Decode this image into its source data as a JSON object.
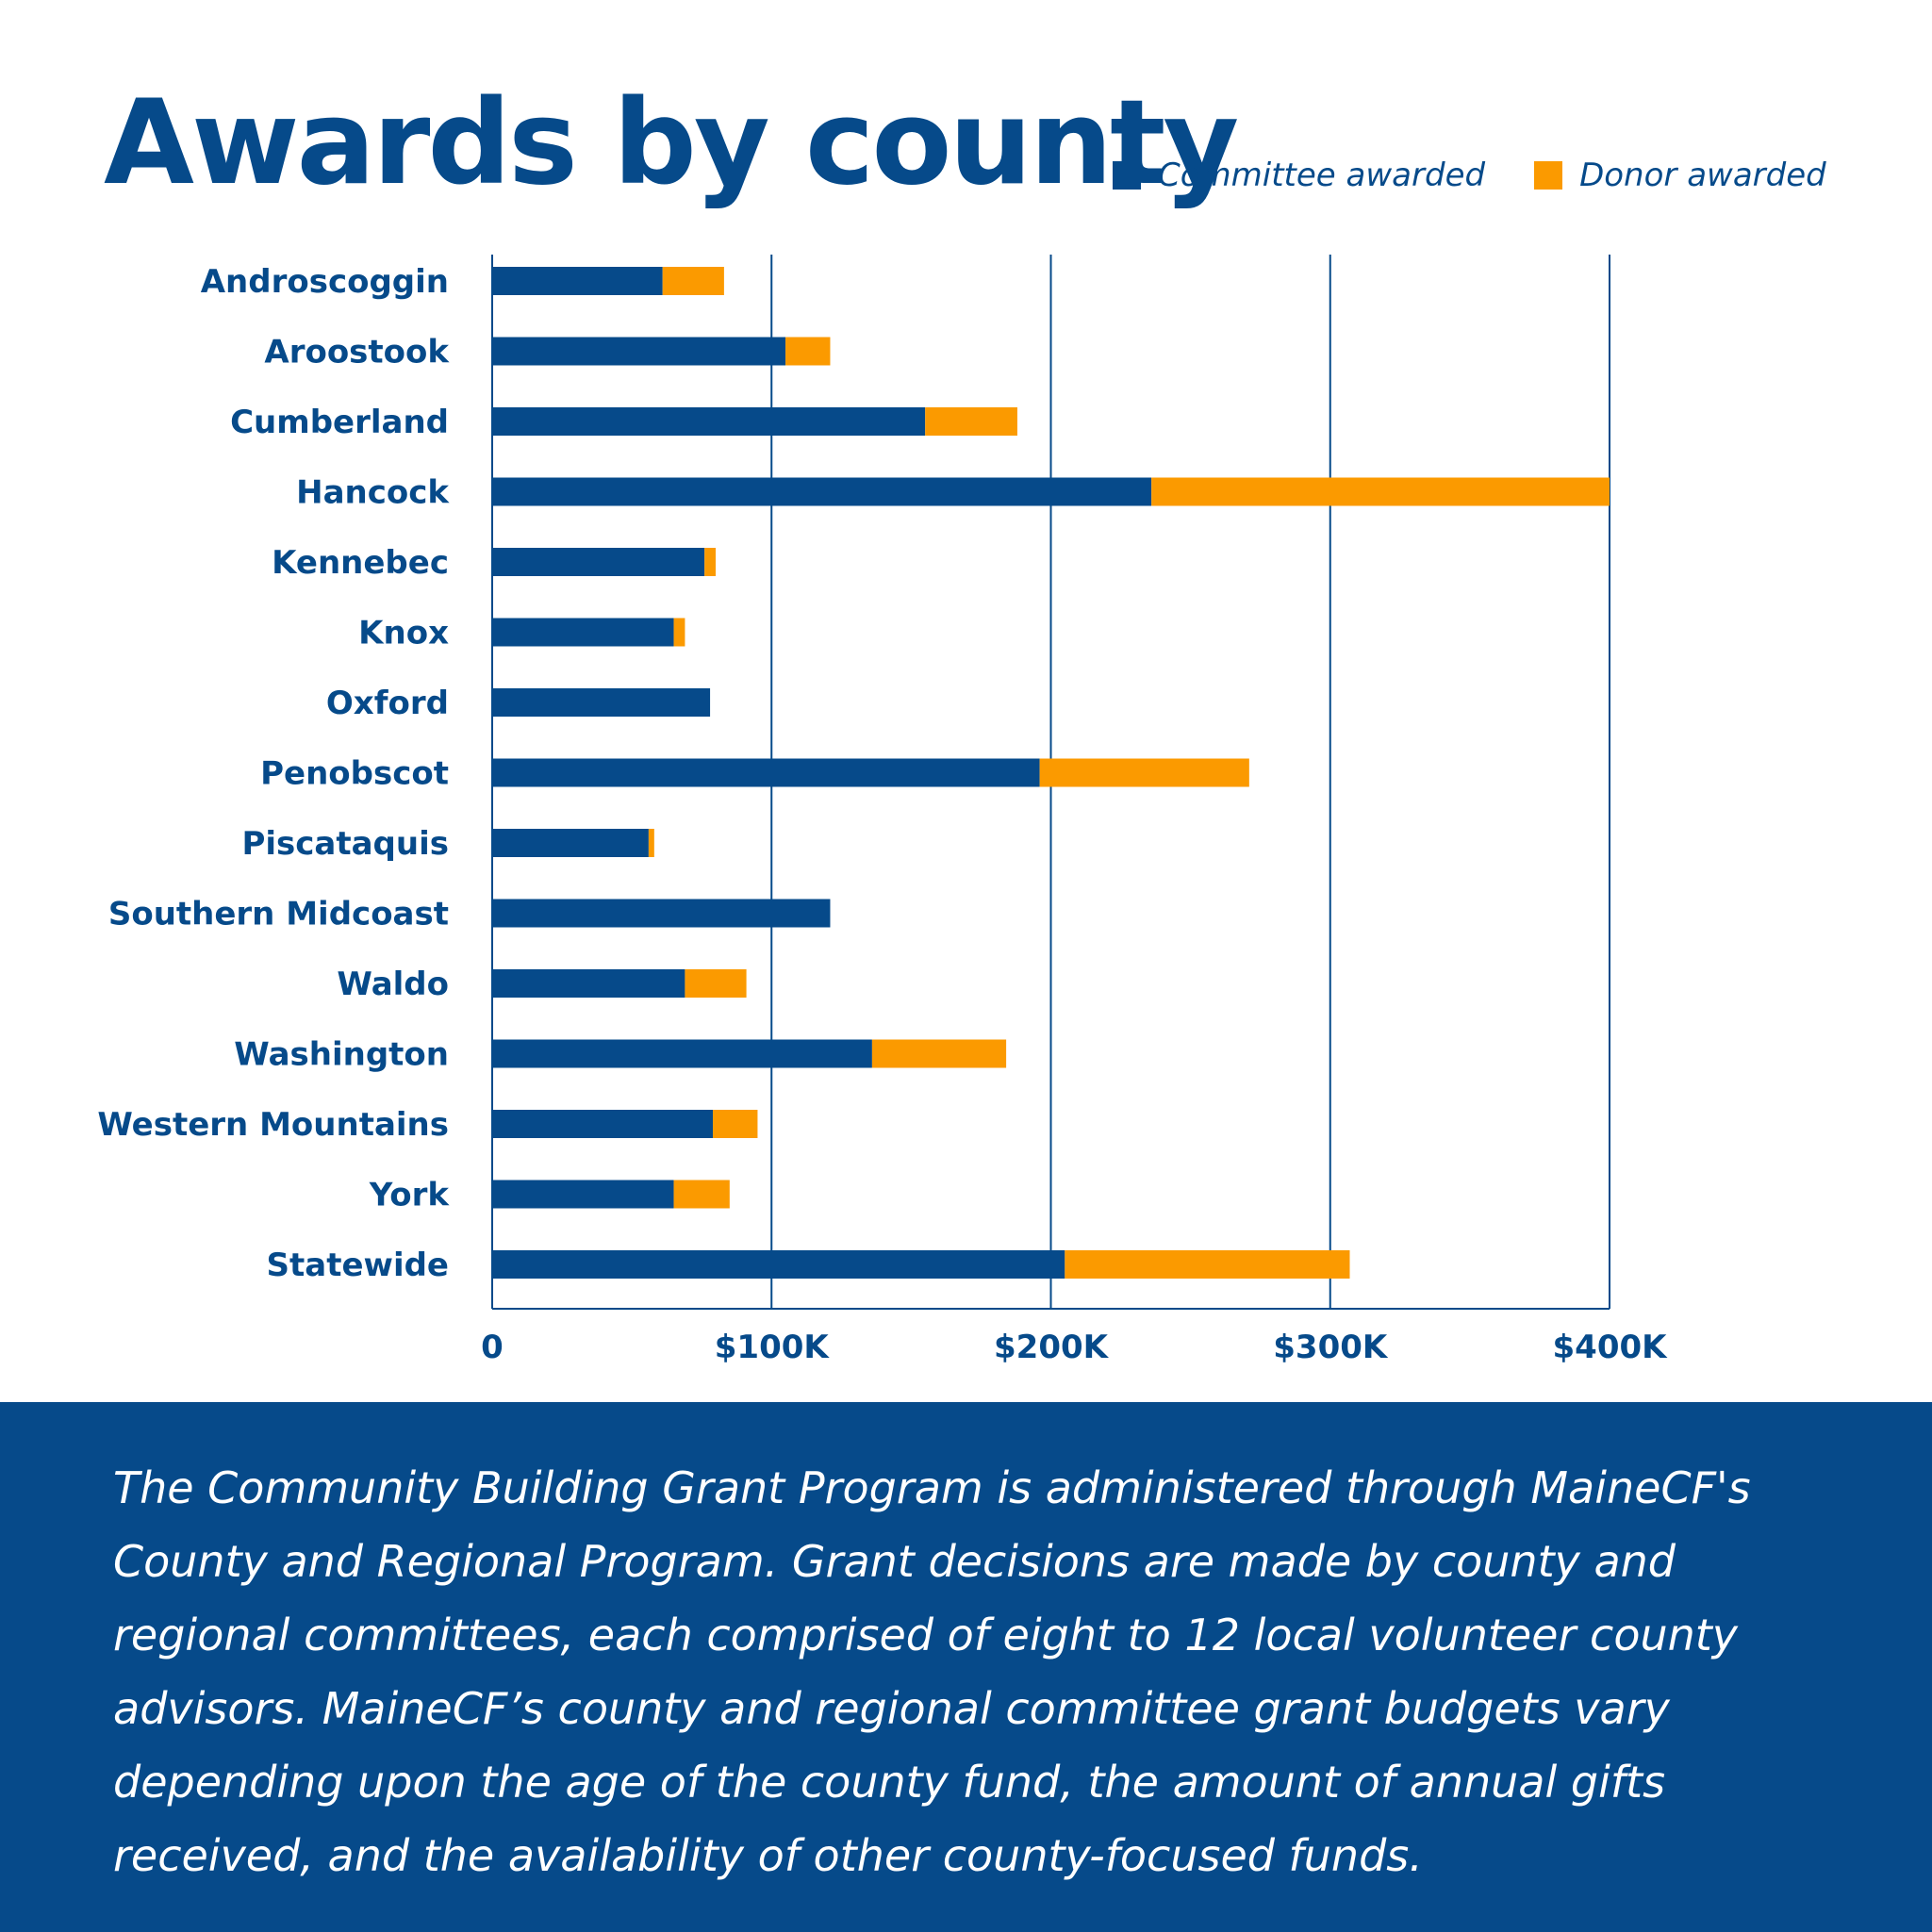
{
  "title": "Awards by county",
  "legend": [
    {
      "label": "Committee awarded",
      "color": "#064a8a"
    },
    {
      "label": "Donor awarded",
      "color": "#fb9a00"
    }
  ],
  "chart_data": {
    "type": "bar",
    "orientation": "horizontal",
    "stacked": true,
    "categories": [
      "Androscoggin",
      "Aroostook",
      "Cumberland",
      "Hancock",
      "Kennebec",
      "Knox",
      "Oxford",
      "Penobscot",
      "Piscataquis",
      "Southern Midcoast",
      "Waldo",
      "Washington",
      "Western Mountains",
      "York",
      "Statewide"
    ],
    "series": [
      {
        "name": "Committee awarded",
        "color": "#064a8a",
        "values": [
          61000,
          105000,
          155000,
          236000,
          76000,
          65000,
          78000,
          196000,
          56000,
          121000,
          69000,
          136000,
          79000,
          65000,
          205000
        ]
      },
      {
        "name": "Donor awarded",
        "color": "#fb9a00",
        "values": [
          22000,
          16000,
          33000,
          164000,
          4000,
          4000,
          0,
          75000,
          2000,
          0,
          22000,
          48000,
          16000,
          20000,
          102000
        ]
      }
    ],
    "xlim": [
      0,
      400000
    ],
    "xticks": [
      0,
      100000,
      200000,
      300000,
      400000
    ],
    "xtick_labels": [
      "0",
      "$100K",
      "$200K",
      "$300K",
      "$400K"
    ],
    "grid": "vertical",
    "legend_placement": "top-right"
  },
  "note": "The Community Building Grant Program is administered through MaineCF's County and Regional Program. Grant decisions are made by county and regional committees, each comprised of eight to 12 local volunteer county advisors. MaineCF’s county and regional committee grant budgets vary depending upon the age of the county fund, the amount of annual gifts received, and the availability of other county-focused funds."
}
